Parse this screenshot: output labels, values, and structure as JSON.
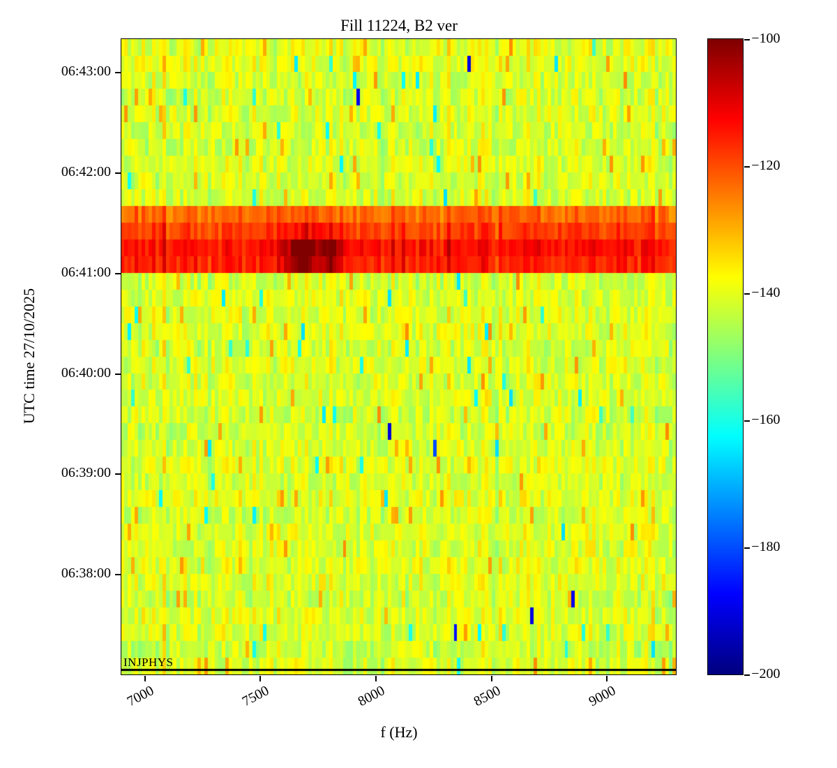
{
  "chart_data": {
    "type": "heatmap",
    "title": "Fill 11224, B2 ver",
    "xlabel": "f (Hz)",
    "ylabel": "UTC time 27/10/2025",
    "colormap": "jet",
    "x_range_hz": [
      6900,
      9300
    ],
    "x_ticks": [
      7000,
      7500,
      8000,
      8500,
      9000
    ],
    "y_time_start": "06:37:00",
    "y_time_end": "06:43:20",
    "y_ticks": [
      "06:38:00",
      "06:39:00",
      "06:40:00",
      "06:41:00",
      "06:42:00",
      "06:43:00"
    ],
    "time_bin_seconds": 10,
    "freq_bins": 160,
    "colorbar": {
      "min": -200,
      "max": -100,
      "tick_values": [
        -100,
        -120,
        -140,
        -160,
        -180,
        -200
      ],
      "tick_labels": [
        "−100",
        "−120",
        "−140",
        "−160",
        "−180",
        "−200"
      ]
    },
    "background_level_db": -141,
    "noise_spread_db": 11,
    "band_event": {
      "time_start": "06:41:00",
      "time_end": "06:41:40",
      "level_db": -116,
      "hotspot": {
        "f_start": 7560,
        "f_end": 7860,
        "peak_db": -100
      }
    },
    "annotation": {
      "label": "INJPHYS",
      "line_color": "#000000"
    }
  }
}
